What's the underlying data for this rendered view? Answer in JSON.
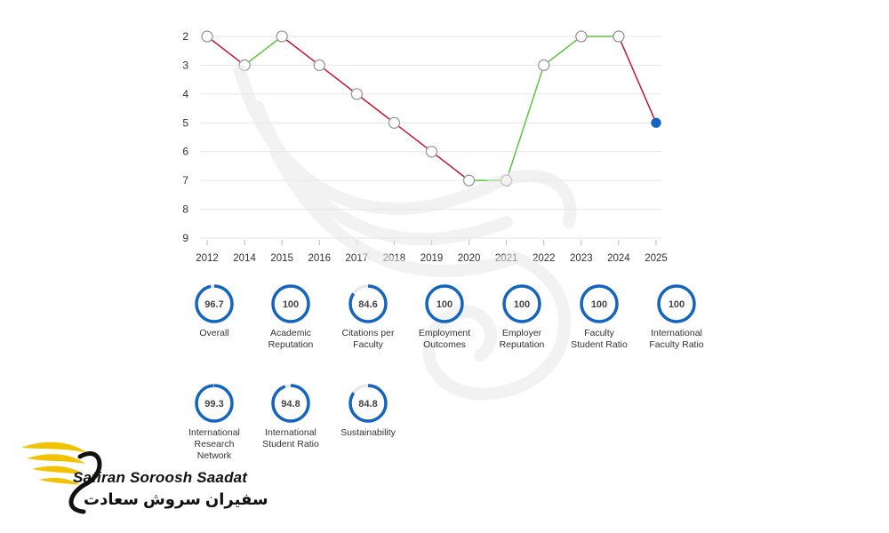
{
  "chart_data": {
    "type": "line",
    "title": "",
    "xlabel": "",
    "ylabel": "",
    "y_inverted": true,
    "ylim": [
      2,
      9
    ],
    "yticks": [
      2,
      3,
      4,
      5,
      6,
      7,
      8,
      9
    ],
    "categories": [
      "2012",
      "2014",
      "2015",
      "2016",
      "2017",
      "2018",
      "2019",
      "2020",
      "2021",
      "2022",
      "2023",
      "2024",
      "2025"
    ],
    "values": [
      2,
      3,
      2,
      3,
      4,
      5,
      6,
      7,
      7,
      3,
      2,
      2,
      5
    ],
    "colors": {
      "worse": "#c0152f",
      "better": "#5cc23f",
      "point_fill": "#ffffff",
      "point_stroke": "#9a9a9a",
      "last_point": "#1565c0",
      "grid": "#e6e6e6"
    }
  },
  "metrics": [
    {
      "value": "96.7",
      "score": 96.7,
      "label": "Overall"
    },
    {
      "value": "100",
      "score": 100,
      "label": "Academic\nReputation"
    },
    {
      "value": "84.6",
      "score": 84.6,
      "label": "Citations per\nFaculty"
    },
    {
      "value": "100",
      "score": 100,
      "label": "Employment\nOutcomes"
    },
    {
      "value": "100",
      "score": 100,
      "label": "Employer\nReputation"
    },
    {
      "value": "100",
      "score": 100,
      "label": "Faculty\nStudent Ratio"
    },
    {
      "value": "100",
      "score": 100,
      "label": "International\nFaculty Ratio"
    },
    {
      "value": "99.3",
      "score": 99.3,
      "label": "International\nResearch\nNetwork"
    },
    {
      "value": "94.8",
      "score": 94.8,
      "label": "International\nStudent Ratio"
    },
    {
      "value": "84.8",
      "score": 84.8,
      "label": "Sustainability"
    }
  ],
  "ring_colors": {
    "fill": "#1565c0",
    "track": "#e8e8e8"
  },
  "brand": {
    "name_en": "Safiran Soroosh Saadat",
    "name_fa": "سفیران سروش سعادت",
    "logo_color": "#f2c200"
  }
}
